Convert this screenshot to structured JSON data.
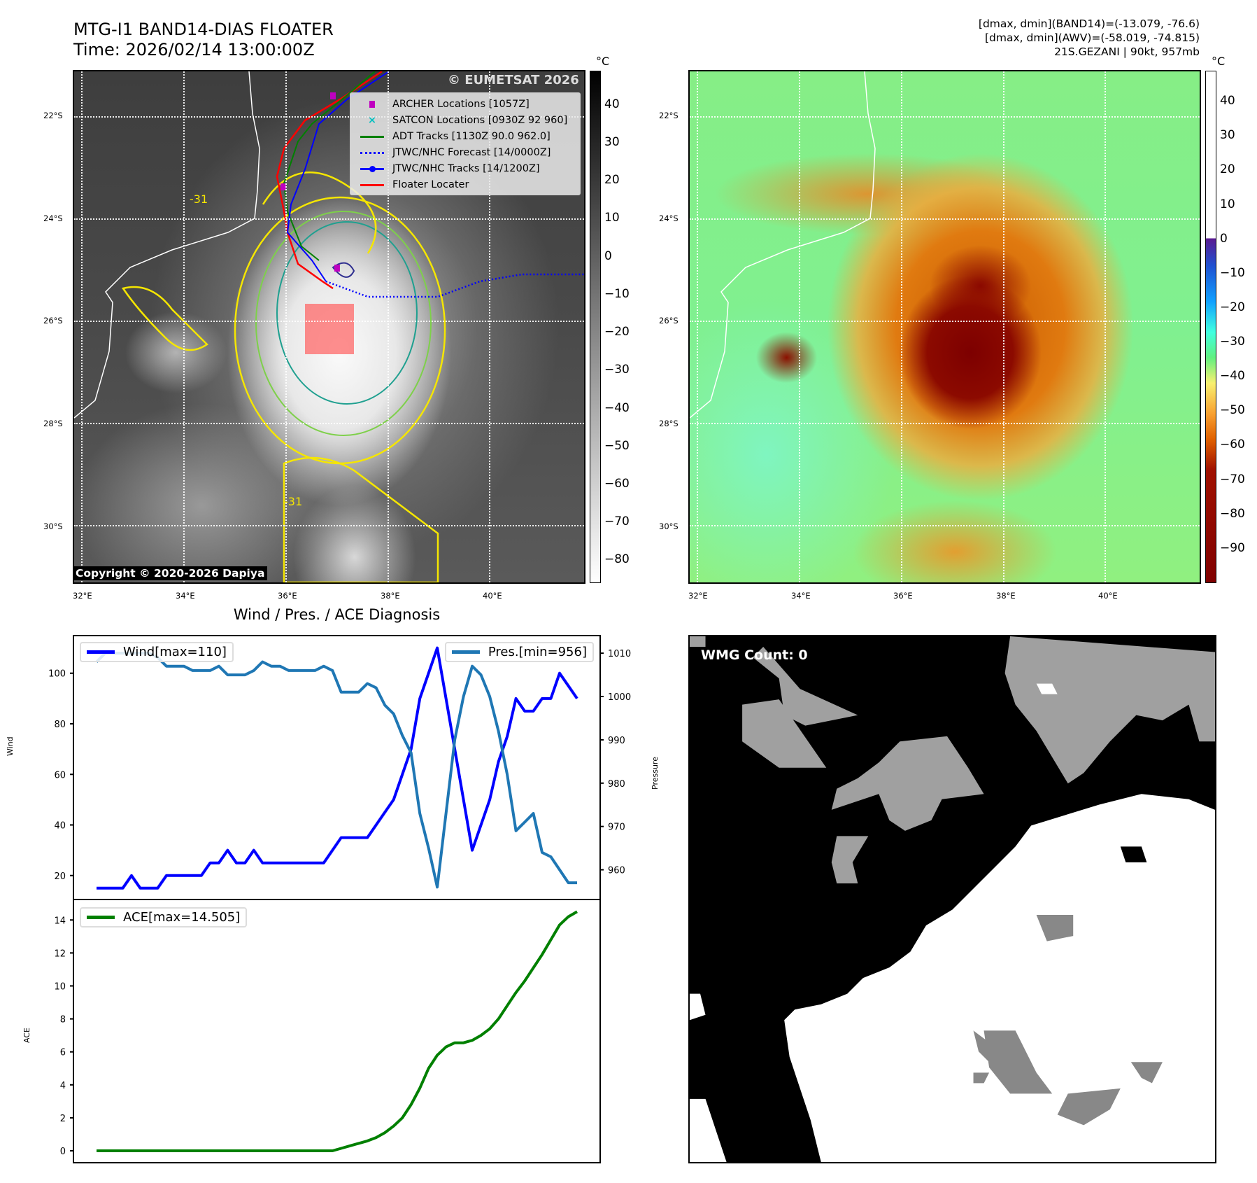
{
  "header": {
    "title_line1": "MTG-I1 BAND14-DIAS FLOATER",
    "title_line2": "Time: 2026/02/14 13:00:00Z",
    "stats_line1": "[dmax, dmin](BAND14)=(-13.079, -76.6)",
    "stats_line2": "[dmax, dmin](AWV)=(-58.019, -74.815)",
    "stats_line3": "21S.GEZANI | 90kt, 957mb"
  },
  "map": {
    "lat_labels": [
      "22°S",
      "24°S",
      "26°S",
      "28°S",
      "30°S"
    ],
    "lon_labels": [
      "32°E",
      "34°E",
      "36°E",
      "38°E",
      "40°E"
    ],
    "watermark": "© EUMETSAT 2026",
    "copyright": "Copyright © 2020-2026 Dapiya",
    "contour_label": "-31",
    "legend": [
      {
        "label": "ARCHER Locations [1057Z]",
        "color": "#c000c0"
      },
      {
        "label": "SATCON Locations [0930Z 92 960]",
        "color": "#00c0c0"
      },
      {
        "label": "ADT Tracks [1130Z 90.0 962.0]",
        "color": "#008000"
      },
      {
        "label": "JTWC/NHC Forecast [14/0000Z]",
        "color": "#0000ff"
      },
      {
        "label": "JTWC/NHC Tracks [14/1200Z]",
        "color": "#0000ff"
      },
      {
        "label": "Floater Locater",
        "color": "#ff0000"
      }
    ]
  },
  "colorbar_left": {
    "unit": "°C",
    "ticks": [
      "40",
      "30",
      "20",
      "10",
      "0",
      "−10",
      "−20",
      "−30",
      "−40",
      "−50",
      "−60",
      "−70",
      "−80"
    ],
    "range": [
      49,
      -86
    ]
  },
  "colorbar_right": {
    "unit": "°C",
    "ticks": [
      "40",
      "30",
      "20",
      "10",
      "0",
      "−10",
      "−20",
      "−30",
      "−40",
      "−50",
      "−60",
      "−70",
      "−80",
      "−90"
    ],
    "range": [
      49,
      -100
    ]
  },
  "chart_data": [
    {
      "type": "line",
      "title": "Wind / Pres. / ACE Diagnosis",
      "ylabel": "Wind",
      "y2label": "Pressure",
      "ylim": [
        10.8,
        114.6
      ],
      "y2lim": [
        953.3,
        1013.9
      ],
      "yticks": [
        20,
        40,
        60,
        80,
        100
      ],
      "y2ticks": [
        960,
        970,
        980,
        990,
        1000,
        1010
      ],
      "series": [
        {
          "name": "Wind[max=110]",
          "axis": "left",
          "color": "#0000ff",
          "values": [
            15,
            15,
            15,
            15,
            20,
            15,
            15,
            15,
            20,
            20,
            20,
            20,
            20,
            25,
            25,
            30,
            25,
            25,
            30,
            25,
            25,
            25,
            25,
            25,
            25,
            25,
            25,
            30,
            35,
            35,
            35,
            35,
            40,
            45,
            50,
            60,
            70,
            90,
            100,
            110,
            90,
            70,
            50,
            30,
            40,
            50,
            65,
            75,
            90,
            85,
            85,
            90,
            90,
            100,
            95,
            90
          ]
        },
        {
          "name": "Pres.[min=956]",
          "axis": "right",
          "color": "#1f77b4",
          "values": [
            1008,
            1010,
            1010,
            1010,
            1010,
            1010,
            1010,
            1009,
            1007,
            1007,
            1007,
            1006,
            1006,
            1006,
            1007,
            1005,
            1005,
            1005,
            1006,
            1008,
            1007,
            1007,
            1006,
            1006,
            1006,
            1006,
            1007,
            1006,
            1001,
            1001,
            1001,
            1003,
            1002,
            998,
            996,
            991,
            987,
            973,
            965,
            956,
            973,
            990,
            1000,
            1007,
            1005,
            1000,
            992,
            982,
            969,
            971,
            973,
            964,
            963,
            960,
            957,
            957
          ]
        }
      ],
      "legend": [
        "upper-left",
        "upper-right"
      ],
      "grid": false
    },
    {
      "type": "line",
      "ylabel": "ACE",
      "ylim": [
        -0.68,
        15.2
      ],
      "yticks": [
        0,
        2,
        4,
        6,
        8,
        10,
        12,
        14
      ],
      "series": [
        {
          "name": "ACE[max=14.505]",
          "color": "#008000",
          "values": [
            0,
            0,
            0,
            0,
            0,
            0,
            0,
            0,
            0,
            0,
            0,
            0,
            0,
            0,
            0,
            0,
            0,
            0,
            0,
            0,
            0,
            0,
            0,
            0,
            0,
            0,
            0,
            0,
            0.15,
            0.3,
            0.45,
            0.6,
            0.8,
            1.1,
            1.5,
            2.0,
            2.8,
            3.8,
            5.0,
            5.8,
            6.3,
            6.55,
            6.55,
            6.7,
            7.0,
            7.4,
            8.0,
            8.8,
            9.6,
            10.3,
            11.1,
            11.9,
            12.8,
            13.7,
            14.2,
            14.505
          ]
        }
      ],
      "legend": "upper-left",
      "grid": false
    }
  ],
  "wmg": {
    "label": "WMG Count: 0"
  }
}
